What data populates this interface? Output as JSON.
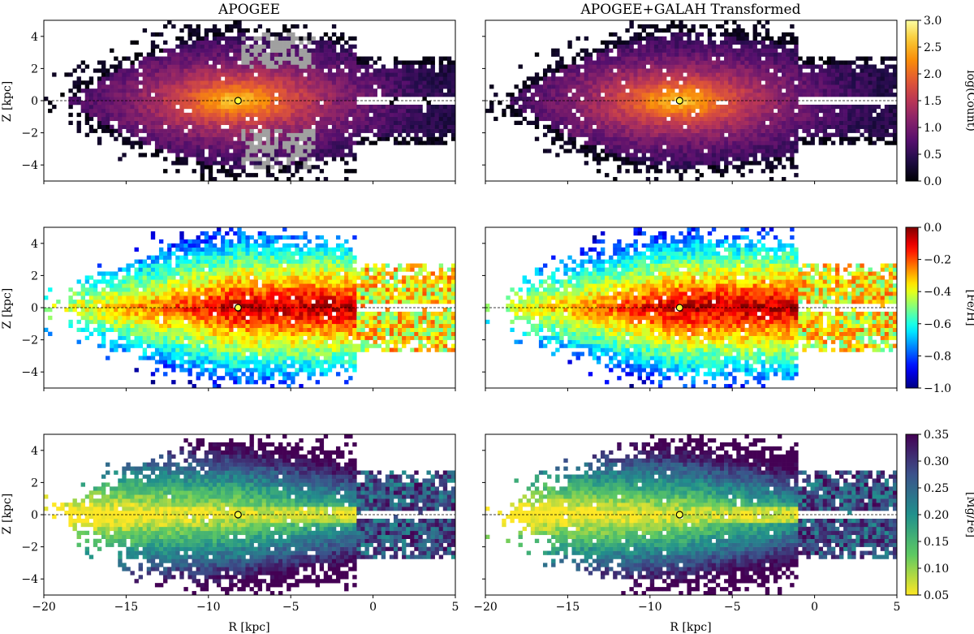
{
  "figure": {
    "titles": [
      "APOGEE",
      "APOGEE+GALAH Transformed"
    ],
    "xlabel": "R [kpc]",
    "ylabel": "Z [kpc]",
    "sun_marker": {
      "R": -8.2,
      "Z": 0.0
    }
  },
  "chart_data": [
    {
      "type": "heatmap",
      "title": "APOGEE",
      "quantity": "log(Count)",
      "colormap": "inferno",
      "x_range": [
        -20,
        5
      ],
      "y_range": [
        -5,
        5
      ],
      "xlabel": "R [kpc]",
      "ylabel": "Z [kpc]",
      "x_ticks": [
        "−20",
        "−15",
        "−10",
        "−5",
        "0",
        "5"
      ],
      "y_ticks": [
        "−4",
        "−2",
        "0",
        "2",
        "4"
      ],
      "color_range": [
        0.0,
        3.0
      ],
      "colorbar_ticks": [
        "0.0",
        "0.5",
        "1.0",
        "1.5",
        "2.0",
        "2.5",
        "3.0"
      ],
      "masked_regions": "grey bins near R≈−4 to −7, Z from about −2 to −4 and Z about 2 to 4"
    },
    {
      "type": "heatmap",
      "title": "APOGEE+GALAH Transformed",
      "quantity": "log(Count)",
      "colormap": "inferno",
      "x_range": [
        -20,
        5
      ],
      "y_range": [
        -5,
        5
      ],
      "xlabel": "R [kpc]",
      "ylabel": "Z [kpc]",
      "x_ticks": [
        "−20",
        "−15",
        "−10",
        "−5",
        "0",
        "5"
      ],
      "y_ticks": [
        "−4",
        "−2",
        "0",
        "2",
        "4"
      ],
      "color_range": [
        0.0,
        3.0
      ]
    },
    {
      "type": "heatmap",
      "title": "APOGEE",
      "quantity": "[Fe/H]",
      "colormap": "jet",
      "x_range": [
        -20,
        5
      ],
      "y_range": [
        -5,
        5
      ],
      "xlabel": "R [kpc]",
      "ylabel": "Z [kpc]",
      "x_ticks": [
        "−20",
        "−15",
        "−10",
        "−5",
        "0",
        "5"
      ],
      "y_ticks": [
        "−4",
        "−2",
        "0",
        "2",
        "4"
      ],
      "color_range": [
        -1.0,
        0.0
      ],
      "colorbar_ticks": [
        "−1.0",
        "−0.8",
        "−0.6",
        "−0.4",
        "−0.2",
        "0.0"
      ]
    },
    {
      "type": "heatmap",
      "title": "APOGEE+GALAH Transformed",
      "quantity": "[Fe/H]",
      "colormap": "jet",
      "x_range": [
        -20,
        5
      ],
      "y_range": [
        -5,
        5
      ],
      "xlabel": "R [kpc]",
      "ylabel": "Z [kpc]",
      "x_ticks": [
        "−20",
        "−15",
        "−10",
        "−5",
        "0",
        "5"
      ],
      "y_ticks": [
        "−4",
        "−2",
        "0",
        "2",
        "4"
      ],
      "color_range": [
        -1.0,
        0.0
      ]
    },
    {
      "type": "heatmap",
      "title": "APOGEE",
      "quantity": "[Mg/Fe]",
      "colormap": "viridis_r",
      "x_range": [
        -20,
        5
      ],
      "y_range": [
        -5,
        5
      ],
      "xlabel": "R [kpc]",
      "ylabel": "Z [kpc]",
      "x_ticks": [
        "−20",
        "−15",
        "−10",
        "−5",
        "0",
        "5"
      ],
      "y_ticks": [
        "−4",
        "−2",
        "0",
        "2",
        "4"
      ],
      "color_range": [
        0.05,
        0.35
      ],
      "colorbar_ticks": [
        "0.05",
        "0.10",
        "0.15",
        "0.20",
        "0.25",
        "0.30",
        "0.35"
      ]
    },
    {
      "type": "heatmap",
      "title": "APOGEE+GALAH Transformed",
      "quantity": "[Mg/Fe]",
      "colormap": "viridis_r",
      "x_range": [
        -20,
        5
      ],
      "y_range": [
        -5,
        5
      ],
      "xlabel": "R [kpc]",
      "ylabel": "Z [kpc]",
      "x_ticks": [
        "−20",
        "−15",
        "−10",
        "−5",
        "0",
        "5"
      ],
      "y_ticks": [
        "−4",
        "−2",
        "0",
        "2",
        "4"
      ],
      "color_range": [
        0.05,
        0.35
      ]
    }
  ]
}
